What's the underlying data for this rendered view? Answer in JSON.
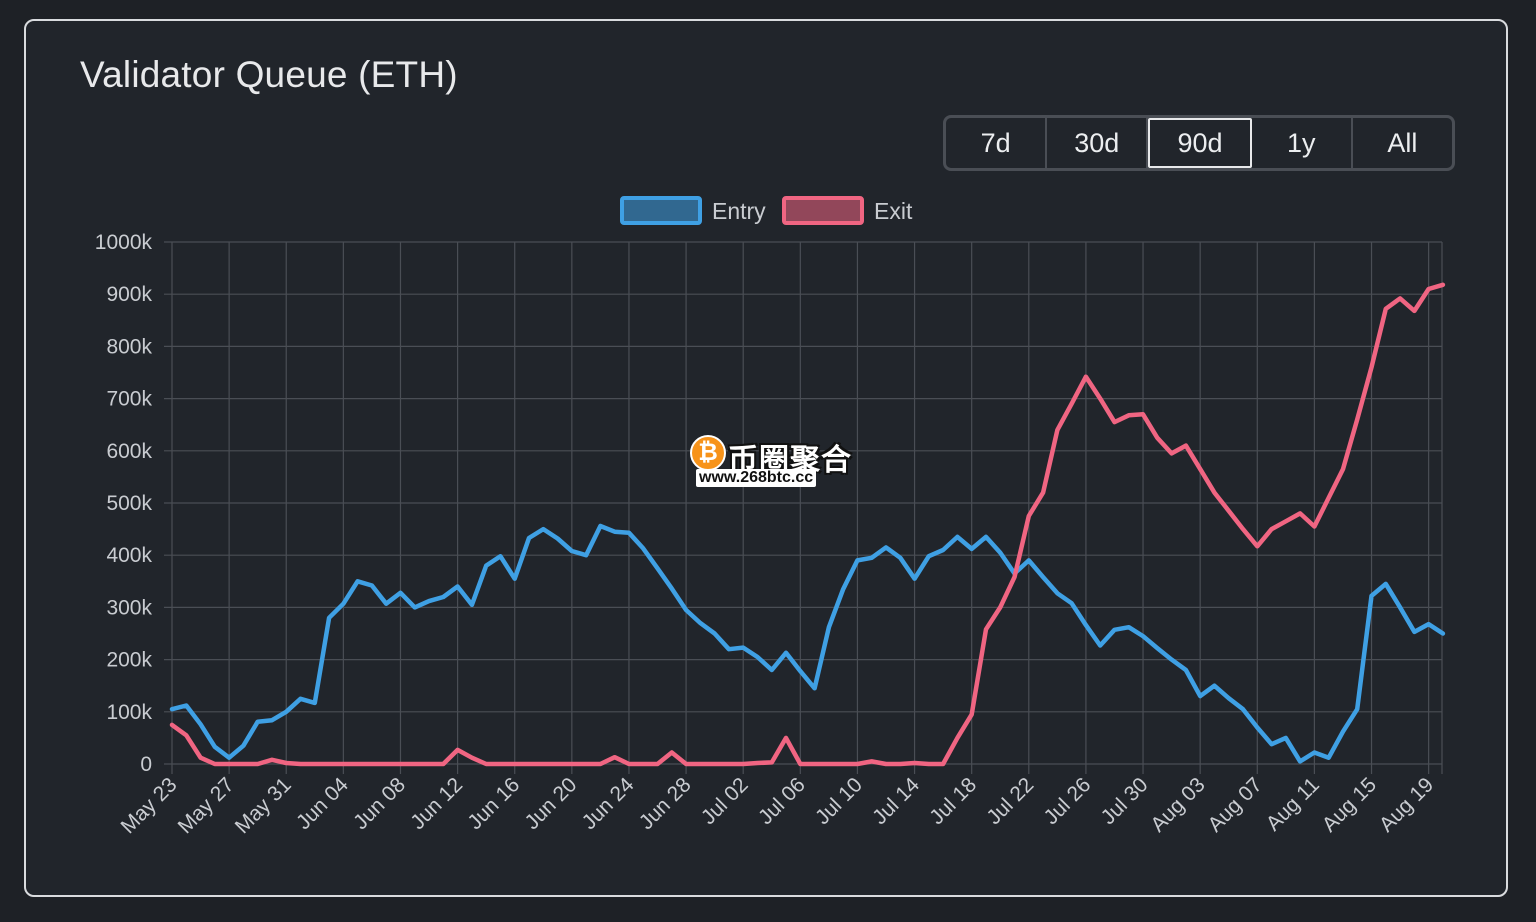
{
  "title": "Validator Queue (ETH)",
  "range_buttons": [
    {
      "label": "7d",
      "active": false
    },
    {
      "label": "30d",
      "active": false
    },
    {
      "label": "90d",
      "active": true
    },
    {
      "label": "1y",
      "active": false
    },
    {
      "label": "All",
      "active": false
    }
  ],
  "watermark": {
    "name": "币圈聚合",
    "url": "www.268btc.cc",
    "coin_symbol": "₿"
  },
  "colors": {
    "entry": "#3fa0e4",
    "exit": "#f06582",
    "grid": "#4a4e55",
    "tick": "#c9ccd1"
  },
  "chart_data": {
    "type": "line",
    "title": "Validator Queue (ETH)",
    "ylim": [
      0,
      1000000
    ],
    "yticks": [
      "0",
      "100k",
      "200k",
      "300k",
      "400k",
      "500k",
      "600k",
      "700k",
      "800k",
      "900k",
      "1000k"
    ],
    "x_tick_labels": [
      "May 23",
      "May 27",
      "May 31",
      "Jun 04",
      "Jun 08",
      "Jun 12",
      "Jun 16",
      "Jun 20",
      "Jun 24",
      "Jun 28",
      "Jul 02",
      "Jul 06",
      "Jul 10",
      "Jul 14",
      "Jul 18",
      "Jul 22",
      "Jul 26",
      "Jul 30",
      "Aug 03",
      "Aug 07",
      "Aug 11",
      "Aug 15",
      "Aug 19"
    ],
    "x_note": "daily points starting May 23",
    "legend": {
      "position": "top",
      "entries": [
        "Entry",
        "Exit"
      ]
    },
    "series": [
      {
        "name": "Entry",
        "color": "#3fa0e4",
        "values": [
          105000,
          112000,
          76000,
          33000,
          12000,
          35000,
          81000,
          84000,
          100000,
          125000,
          117000,
          280000,
          307000,
          350000,
          342000,
          307000,
          328000,
          300000,
          312000,
          320000,
          340000,
          305000,
          380000,
          398000,
          355000,
          433000,
          450000,
          432000,
          408000,
          400000,
          456000,
          445000,
          443000,
          413000,
          375000,
          336000,
          295000,
          270000,
          250000,
          220000,
          223000,
          205000,
          180000,
          213000,
          178000,
          145000,
          262000,
          335000,
          390000,
          395000,
          415000,
          395000,
          355000,
          398000,
          410000,
          435000,
          412000,
          435000,
          405000,
          365000,
          390000,
          358000,
          327000,
          308000,
          266000,
          227000,
          257000,
          262000,
          245000,
          222000,
          200000,
          180000,
          130000,
          150000,
          126000,
          105000,
          70000,
          38000,
          50000,
          5000,
          22000,
          12000,
          62000,
          105000,
          322000,
          345000,
          300000,
          253000,
          268000,
          250000
        ]
      },
      {
        "name": "Exit",
        "color": "#f06582",
        "values": [
          75000,
          55000,
          12000,
          0,
          0,
          0,
          0,
          8000,
          2000,
          0,
          0,
          0,
          0,
          0,
          0,
          0,
          0,
          0,
          0,
          0,
          27000,
          12000,
          0,
          0,
          0,
          0,
          0,
          0,
          0,
          0,
          0,
          13000,
          0,
          0,
          0,
          22000,
          0,
          0,
          0,
          0,
          0,
          2000,
          3000,
          50000,
          0,
          0,
          0,
          0,
          0,
          5000,
          0,
          0,
          2000,
          0,
          0,
          50000,
          95000,
          258000,
          300000,
          358000,
          475000,
          520000,
          640000,
          690000,
          742000,
          700000,
          655000,
          668000,
          670000,
          625000,
          595000,
          610000,
          565000,
          520000,
          485000,
          450000,
          417000,
          450000,
          465000,
          480000,
          455000,
          510000,
          565000,
          660000,
          760000,
          872000,
          892000,
          868000,
          910000,
          918000
        ]
      }
    ]
  }
}
